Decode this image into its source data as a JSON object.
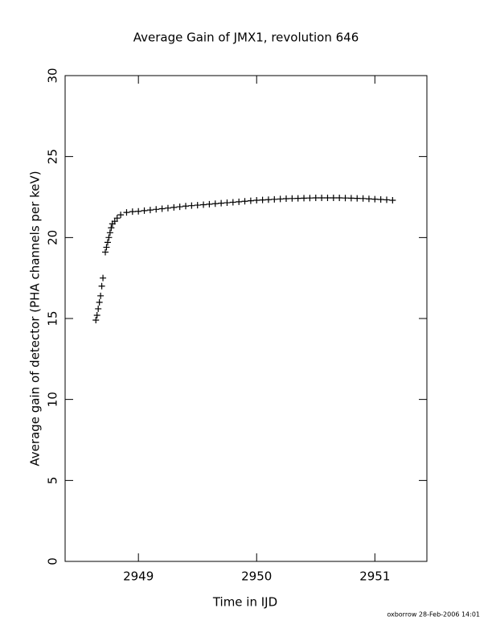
{
  "chart_data": {
    "type": "scatter",
    "title": "Average Gain of JMX1, revolution 646",
    "xlabel": "Time in IJD",
    "ylabel": "Average gain of detector (PHA channels per keV)",
    "footer": "oxborrow 28-Feb-2006 14:01",
    "color": "#000000",
    "marker": "+",
    "xlim": [
      2948.38,
      2951.44
    ],
    "xticks": [
      2949,
      2950,
      2951
    ],
    "ylim": [
      0,
      30
    ],
    "yticks": [
      0,
      5,
      10,
      15,
      20,
      25,
      30
    ],
    "x": [
      2948.64,
      2948.65,
      2948.66,
      2948.67,
      2948.68,
      2948.69,
      2948.7,
      2948.72,
      2948.73,
      2948.74,
      2948.75,
      2948.76,
      2948.77,
      2948.78,
      2948.8,
      2948.82,
      2948.85,
      2948.9,
      2948.95,
      2949.0,
      2949.05,
      2949.1,
      2949.15,
      2949.2,
      2949.25,
      2949.3,
      2949.35,
      2949.4,
      2949.45,
      2949.5,
      2949.55,
      2949.6,
      2949.65,
      2949.7,
      2949.75,
      2949.8,
      2949.85,
      2949.9,
      2949.95,
      2950.0,
      2950.05,
      2950.1,
      2950.15,
      2950.2,
      2950.25,
      2950.3,
      2950.35,
      2950.4,
      2950.45,
      2950.5,
      2950.55,
      2950.6,
      2950.65,
      2950.7,
      2950.75,
      2950.8,
      2950.85,
      2950.9,
      2950.95,
      2951.0,
      2951.05,
      2951.1,
      2951.15
    ],
    "y": [
      14.9,
      15.2,
      15.6,
      16.0,
      16.4,
      17.0,
      17.5,
      19.1,
      19.4,
      19.7,
      20.0,
      20.3,
      20.6,
      20.85,
      21.0,
      21.2,
      21.4,
      21.55,
      21.6,
      21.62,
      21.66,
      21.7,
      21.74,
      21.78,
      21.82,
      21.86,
      21.9,
      21.94,
      21.97,
      22.0,
      22.03,
      22.06,
      22.09,
      22.12,
      22.15,
      22.18,
      22.21,
      22.24,
      22.27,
      22.3,
      22.32,
      22.34,
      22.36,
      22.38,
      22.4,
      22.41,
      22.42,
      22.43,
      22.44,
      22.45,
      22.45,
      22.45,
      22.45,
      22.45,
      22.44,
      22.43,
      22.42,
      22.41,
      22.39,
      22.37,
      22.35,
      22.33,
      22.3
    ]
  }
}
